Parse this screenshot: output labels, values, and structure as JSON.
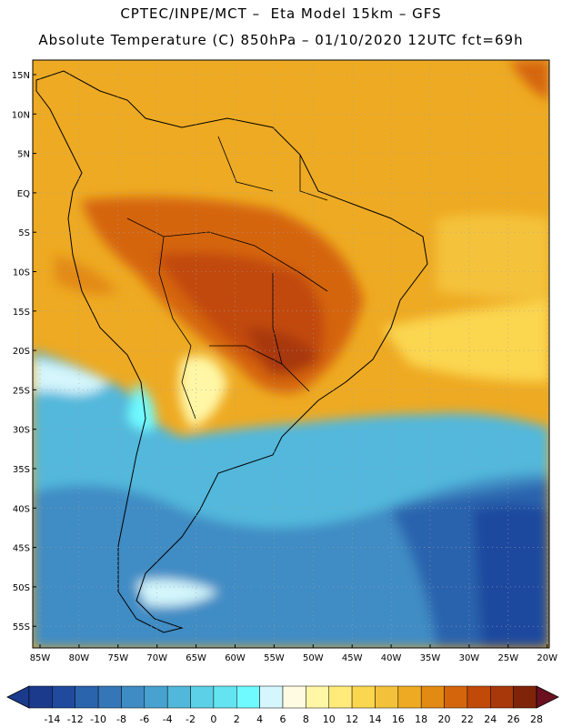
{
  "header": {
    "line1": "CPTEC/INPE/MCT –  Eta Model 15km – GFS",
    "line2": "Absolute Temperature (C) 850hPa – 01/10/2020 12UTC fct=69h"
  },
  "axes": {
    "lat_labels": [
      "15N",
      "10N",
      "5N",
      "EQ",
      "5S",
      "10S",
      "15S",
      "20S",
      "25S",
      "30S",
      "35S",
      "40S",
      "45S",
      "50S",
      "55S"
    ],
    "lon_labels": [
      "85W",
      "80W",
      "75W",
      "70W",
      "65W",
      "60W",
      "55W",
      "50W",
      "45W",
      "40W",
      "35W",
      "30W",
      "25W",
      "20W"
    ],
    "grid": "dotted"
  },
  "colorbar": {
    "labels": [
      "-14",
      "-12",
      "-10",
      "-8",
      "-6",
      "-4",
      "-2",
      "0",
      "2",
      "4",
      "6",
      "8",
      "10",
      "12",
      "14",
      "16",
      "18",
      "20",
      "22",
      "24",
      "26",
      "28"
    ],
    "colors": [
      "#1b3a8c",
      "#1f4a9e",
      "#2a64ad",
      "#3576b8",
      "#3f8cc4",
      "#48a2cf",
      "#52b8db",
      "#5cd0e6",
      "#64e4f0",
      "#6ffaff",
      "#d4f6fc",
      "#fffbe3",
      "#fff7a6",
      "#ffeb7a",
      "#fbd64f",
      "#f4c23a",
      "#eeaa22",
      "#e28a12",
      "#d5650c",
      "#c14a08",
      "#a8380a",
      "#7f2309"
    ],
    "min_arrow_color": "#1b3a8c",
    "max_arrow_color": "#6b1020"
  }
}
